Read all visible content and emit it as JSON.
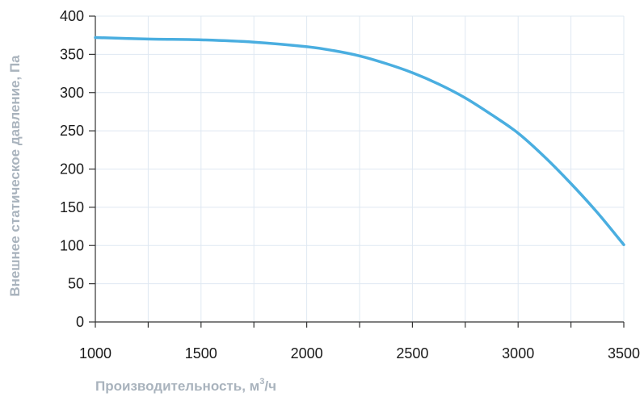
{
  "chart_data": {
    "type": "line",
    "xlabel": "Производительность, м³/ч",
    "xlabel_parts": {
      "main": "Производительность, м",
      "sup": "3",
      "tail": "/ч"
    },
    "ylabel": "Внешнее статическое давление, Па",
    "xlim": [
      1000,
      3500
    ],
    "ylim": [
      0,
      400
    ],
    "x_ticks": [
      1000,
      1500,
      2000,
      2500,
      3000,
      3500
    ],
    "x_minor_step": 250,
    "y_ticks": [
      0,
      50,
      100,
      150,
      200,
      250,
      300,
      350,
      400
    ],
    "grid": true,
    "series": [
      {
        "color": "#4aaee0",
        "x": [
          1000,
          1250,
          1500,
          1750,
          2000,
          2125,
          2250,
          2375,
          2500,
          2625,
          2750,
          2875,
          3000,
          3125,
          3250,
          3375,
          3500
        ],
        "y": [
          372,
          370,
          369,
          366,
          360,
          355,
          348,
          338,
          326,
          311,
          293,
          271,
          247,
          216,
          181,
          143,
          101
        ]
      }
    ],
    "colors": {
      "grid": "#dfe8f2",
      "axis": "#333333",
      "tick_label": "#1a1a1a",
      "axis_title": "#a9b3bd"
    }
  }
}
